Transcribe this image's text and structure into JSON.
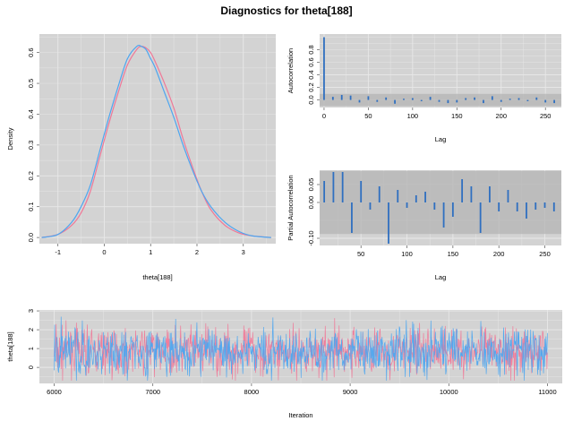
{
  "page": {
    "title": "Diagnostics for theta[188]"
  },
  "colors": {
    "panel_bg": "#d3d3d3",
    "grid": "#e8e8e8",
    "chain1": "#f07898",
    "chain2": "#4da6f0",
    "bars": "#2f6fc0",
    "ci_band": "#b4b4b4"
  },
  "chart_data": [
    {
      "type": "line",
      "name": "density",
      "xlabel": "theta[188]",
      "ylabel": "Density",
      "xlim": [
        -1.4,
        3.7
      ],
      "ylim": [
        -0.02,
        0.66
      ],
      "xticks": [
        -1,
        0,
        1,
        2,
        3
      ],
      "yticks": [
        0.0,
        0.1,
        0.2,
        0.3,
        0.4,
        0.5,
        0.6
      ],
      "series": [
        {
          "x": [
            -1.35,
            -1.0,
            -0.7,
            -0.5,
            -0.3,
            -0.1,
            0.1,
            0.3,
            0.5,
            0.7,
            0.8,
            0.9,
            1.0,
            1.1,
            1.3,
            1.5,
            1.7,
            1.9,
            2.1,
            2.3,
            2.6,
            2.9,
            3.2,
            3.6
          ],
          "y": [
            0.0,
            0.01,
            0.04,
            0.08,
            0.15,
            0.26,
            0.37,
            0.47,
            0.56,
            0.61,
            0.62,
            0.615,
            0.6,
            0.57,
            0.5,
            0.42,
            0.32,
            0.23,
            0.15,
            0.09,
            0.04,
            0.015,
            0.005,
            0.0
          ]
        },
        {
          "x": [
            -1.35,
            -1.0,
            -0.7,
            -0.5,
            -0.3,
            -0.1,
            0.1,
            0.3,
            0.5,
            0.7,
            0.8,
            0.9,
            1.0,
            1.1,
            1.3,
            1.5,
            1.7,
            1.9,
            2.1,
            2.3,
            2.6,
            2.9,
            3.2,
            3.6
          ],
          "y": [
            0.0,
            0.01,
            0.05,
            0.1,
            0.17,
            0.28,
            0.39,
            0.49,
            0.58,
            0.62,
            0.62,
            0.61,
            0.58,
            0.55,
            0.47,
            0.39,
            0.3,
            0.22,
            0.15,
            0.1,
            0.05,
            0.02,
            0.005,
            0.0
          ]
        }
      ]
    },
    {
      "type": "bar",
      "name": "autocorrelation",
      "xlabel": "Lag",
      "ylabel": "Autocorrelation",
      "xlim": [
        -5,
        268
      ],
      "ylim": [
        -0.12,
        1.05
      ],
      "xticks": [
        0,
        50,
        100,
        150,
        200,
        250
      ],
      "yticks": [
        0.0,
        0.2,
        0.4,
        0.6,
        0.8
      ],
      "ci": [
        -0.1,
        0.1
      ],
      "x": [
        0,
        10,
        20,
        30,
        40,
        50,
        60,
        70,
        80,
        90,
        100,
        110,
        120,
        130,
        140,
        150,
        160,
        170,
        180,
        190,
        200,
        210,
        220,
        230,
        240,
        250,
        260
      ],
      "values": [
        1.0,
        0.05,
        0.08,
        0.07,
        -0.04,
        0.06,
        -0.03,
        0.04,
        -0.06,
        0.02,
        0.03,
        -0.02,
        0.05,
        -0.03,
        -0.05,
        -0.04,
        0.03,
        0.04,
        -0.05,
        0.06,
        -0.03,
        0.02,
        0.03,
        -0.02,
        0.04,
        -0.04,
        -0.05
      ]
    },
    {
      "type": "bar",
      "name": "partial-autocorrelation",
      "xlabel": "Lag",
      "ylabel": "Partial Autocorrelation",
      "xlim": [
        5,
        268
      ],
      "ylim": [
        -0.12,
        0.09
      ],
      "xticks": [
        50,
        100,
        150,
        200,
        250
      ],
      "yticks": [
        -0.1,
        0.0,
        0.05
      ],
      "ci": [
        -0.088,
        0.088
      ],
      "x": [
        10,
        20,
        30,
        40,
        50,
        60,
        70,
        80,
        90,
        100,
        110,
        120,
        130,
        140,
        150,
        160,
        170,
        180,
        190,
        200,
        210,
        220,
        230,
        240,
        250,
        260
      ],
      "values": [
        0.06,
        0.085,
        0.085,
        -0.085,
        0.06,
        -0.02,
        0.045,
        -0.115,
        0.035,
        -0.015,
        0.02,
        0.03,
        -0.02,
        -0.07,
        -0.04,
        0.065,
        0.045,
        -0.085,
        0.045,
        -0.025,
        0.035,
        -0.025,
        -0.045,
        -0.02,
        -0.015,
        -0.025
      ]
    },
    {
      "type": "line",
      "name": "trace",
      "xlabel": "Iteration",
      "ylabel": "theta[188]",
      "xlim": [
        5850,
        11150
      ],
      "ylim": [
        -0.85,
        3.05
      ],
      "xticks": [
        6000,
        7000,
        8000,
        9000,
        10000,
        11000
      ],
      "yticks": [
        0,
        1,
        2,
        3
      ],
      "trace": {
        "start": 6000,
        "end": 11000,
        "n": 1000,
        "mean": 0.85,
        "sd": 0.62,
        "min": -0.7,
        "max": 3.0,
        "seeds": [
          7,
          19
        ]
      }
    }
  ]
}
